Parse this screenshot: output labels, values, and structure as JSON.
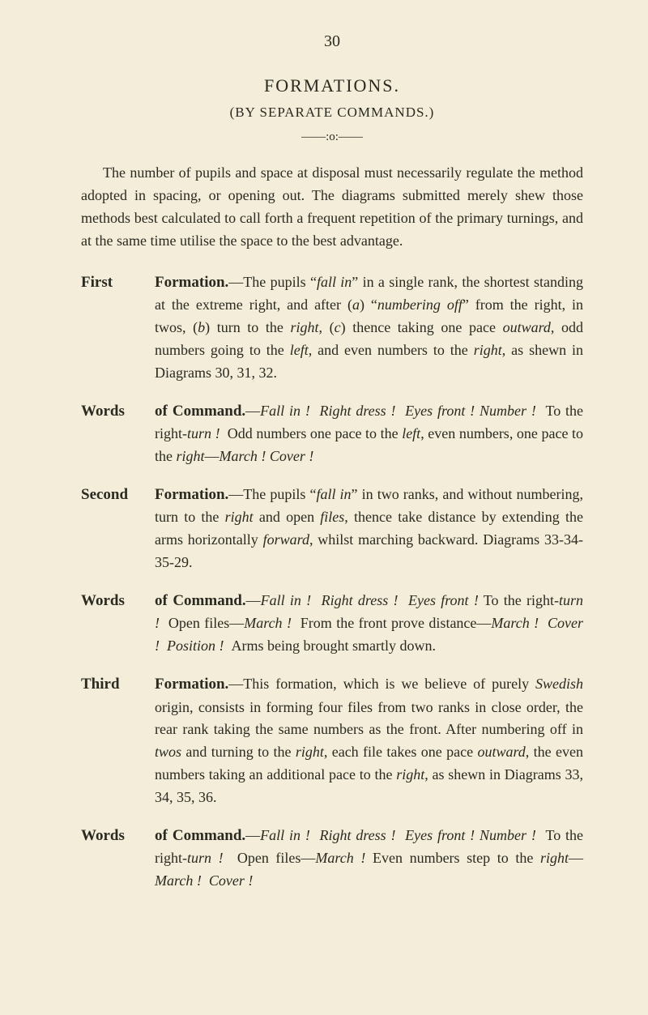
{
  "pageNumber": "30",
  "title": "FORMATIONS.",
  "subtitle": "(BY SEPARATE COMMANDS.)",
  "divider": "——:o:——",
  "intro": "The number of pupils and space at disposal must necessarily regulate the method adopted in spacing, or opening out. The diagrams submitted merely shew those methods best calculated to call forth a frequent repetition of the primary turnings, and at the same time utilise the space to the best advantage.",
  "entries": [
    {
      "label": "First",
      "runIn": "Formation.",
      "html": "—The pupils “<i>fall in</i>” in a single rank, the shortest standing at the extreme right, and after (<i>a</i>) “<i>numbering off</i>” from the right, in twos, (<i>b</i>) turn to the <i>right</i>, (<i>c</i>) thence taking one pace <i>outward</i>, odd numbers going to the <i>left</i>, and even numbers to the <i>right</i>, as shewn in Diagrams 30, 31, 32."
    },
    {
      "label": "Words",
      "runIn": "of Command.",
      "html": "—<i>Fall in !</i>&nbsp;&nbsp;<i>Right dress !</i>&nbsp;&nbsp;<i>Eyes front !</i> <i>Number !</i>&nbsp;&nbsp;To the right-<i>turn !</i>&nbsp;&nbsp;Odd numbers one pace to the <i>left</i>, even numbers, one pace to the <i>right</i>—<i>March !</i> <i>Cover !</i>"
    },
    {
      "label": "Second",
      "runIn": "Formation.",
      "html": "—The pupils “<i>fall in</i>” in two ranks, and without numbering, turn to the <i>right</i> and open <i>files</i>, thence take distance by extending the arms horizontally <i>forward</i>, whilst marching backward. Diagrams 33-34-35-29."
    },
    {
      "label": "Words",
      "runIn": "of Command.",
      "html": "—<i>Fall in !</i>&nbsp;&nbsp;<i>Right dress !</i>&nbsp;&nbsp;<i>Eyes front !</i> To the right-<i>turn !</i>&nbsp;&nbsp;Open files—<i>March !</i>&nbsp;&nbsp;From the front prove distance—<i>March !</i>&nbsp;&nbsp;<i>Cover !</i>&nbsp;&nbsp;<i>Position !</i>&nbsp;&nbsp;Arms being brought smartly down."
    },
    {
      "label": "Third",
      "runIn": "Formation.",
      "html": "—This formation, which is we believe of purely <i>Swedish</i> origin, consists in forming four files from two ranks in close order, the rear rank taking the same numbers as the front. After numbering off in <i>twos</i> and turning to the <i>right</i>, each file takes one pace <i>outward</i>, the even numbers taking an additional pace to the <i>right</i>, as shewn in Diagrams 33, 34, 35, 36."
    },
    {
      "label": "Words",
      "runIn": "of Command.",
      "html": "—<i>Fall in !</i>&nbsp;&nbsp;<i>Right dress !</i>&nbsp;&nbsp;<i>Eyes front !</i> <i>Number !</i>&nbsp;&nbsp;To the right-<i>turn !</i>&nbsp;&nbsp;Open files—<i>March !</i> Even numbers step to the <i>right</i>—<i>March !</i>&nbsp;&nbsp;<i>Cover !</i>"
    }
  ]
}
